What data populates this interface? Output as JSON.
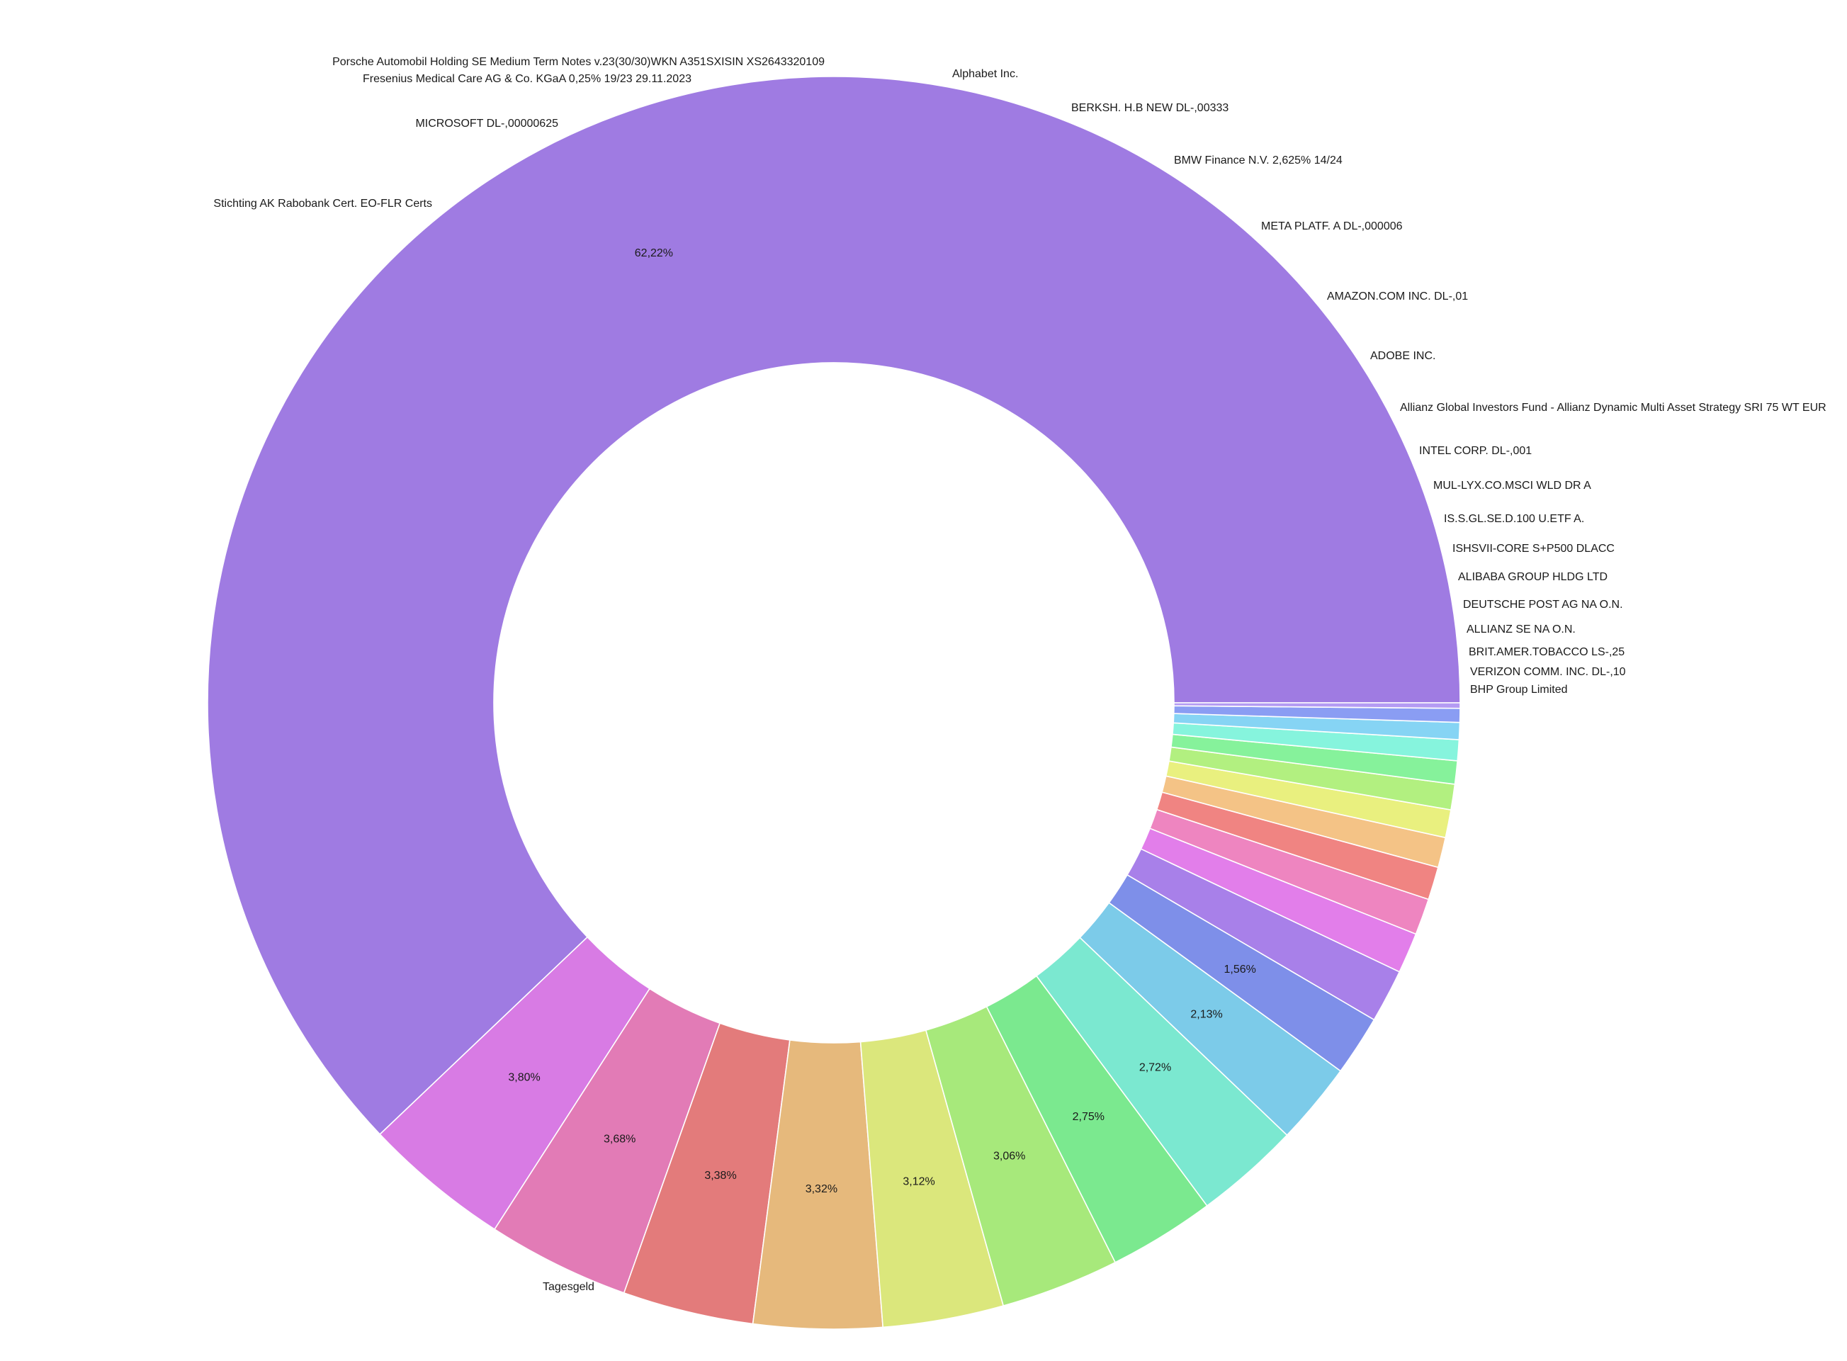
{
  "chart_data": {
    "type": "pie",
    "donut": true,
    "title": "",
    "direction": "counterclockwise",
    "start": "east",
    "slices": [
      {
        "label": "Tagesgeld",
        "value": 62.22,
        "value_label": "62,22%",
        "color": "#9f7be2"
      },
      {
        "label": "Stichting AK Rabobank Cert. EO-FLR Certs",
        "value": 3.8,
        "value_label": "3,80%",
        "color": "#d87be4"
      },
      {
        "label": "MICROSOFT DL-,00000625",
        "value": 3.68,
        "value_label": "3,68%",
        "color": "#e27bb6"
      },
      {
        "label": "Fresenius Medical Care AG & Co. KGaA 0,25% 19/23 29.11.2023",
        "value": 3.38,
        "value_label": "3,38%",
        "color": "#e37b7b"
      },
      {
        "label": "Porsche Automobil Holding SE Medium Term Notes v.23(30/30)WKN A351SXISIN XS2643320109",
        "value": 3.32,
        "value_label": "3,32%",
        "color": "#e6b97c"
      },
      {
        "label": "Alphabet Inc.",
        "value": 3.12,
        "value_label": "3,12%",
        "color": "#dbe77c"
      },
      {
        "label": "BERKSH. H.B NEW DL-,00333",
        "value": 3.06,
        "value_label": "3,06%",
        "color": "#a7e97b"
      },
      {
        "label": "BMW Finance N.V. 2,625% 14/24",
        "value": 2.75,
        "value_label": "2,75%",
        "color": "#7be98f"
      },
      {
        "label": "META PLATF. A DL-,000006",
        "value": 2.72,
        "value_label": "2,72%",
        "color": "#7be8d0"
      },
      {
        "label": "AMAZON.COM INC. DL-,01",
        "value": 2.13,
        "value_label": "2,13%",
        "color": "#7ccbe9"
      },
      {
        "label": "ADOBE INC.",
        "value": 1.56,
        "value_label": "1,56%",
        "color": "#7e8fe9"
      },
      {
        "label": "Allianz Global Investors Fund - Allianz Dynamic Multi Asset Strategy SRI 75 WT EUR",
        "value": 1.38,
        "value_label": "",
        "color": "#a880e9"
      },
      {
        "label": "INTEL CORP. DL-,001",
        "value": 1.05,
        "value_label": "",
        "color": "#e27eea"
      },
      {
        "label": "MUL-LYX.CO.MSCI WLD DR A",
        "value": 0.94,
        "value_label": "",
        "color": "#ee85c0"
      },
      {
        "label": "IS.S.GL.SE.D.100 U.ETF A.",
        "value": 0.85,
        "value_label": "",
        "color": "#f08482"
      },
      {
        "label": "ISHSVII-CORE S+P500 DLACC",
        "value": 0.78,
        "value_label": "",
        "color": "#f4c386"
      },
      {
        "label": "ALIBABA GROUP HLDG LTD",
        "value": 0.72,
        "value_label": "",
        "color": "#e9f07f"
      },
      {
        "label": "DEUTSCHE POST AG NA O.N.",
        "value": 0.66,
        "value_label": "",
        "color": "#b2f080"
      },
      {
        "label": "ALLIANZ SE NA O.N.",
        "value": 0.6,
        "value_label": "",
        "color": "#86f29b"
      },
      {
        "label": "BRIT.AMER.TOBACCO LS-,25",
        "value": 0.54,
        "value_label": "",
        "color": "#86f4dd"
      },
      {
        "label": "VERIZON COMM. INC. DL-,10",
        "value": 0.44,
        "value_label": "",
        "color": "#86d4f4"
      },
      {
        "label": "BHP Group Limited",
        "value": 0.36,
        "value_label": "",
        "color": "#8a9df3"
      },
      {
        "label": "",
        "value": 0.14,
        "value_label": "",
        "color": "#b49bf3"
      }
    ]
  }
}
